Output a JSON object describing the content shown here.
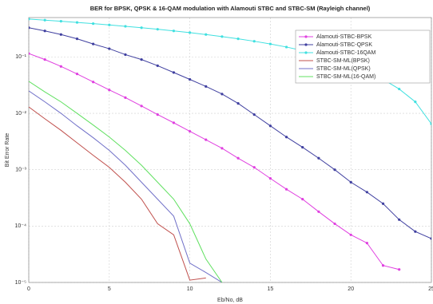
{
  "chart_data": {
    "type": "line",
    "title": "BER for BPSK, QPSK & 16-QAM modulation with Alamouti STBC and STBC-SM (Rayleigh channel)",
    "x_label": "Eb/No, dB",
    "y_label": "Bit Error Rate",
    "x": [
      0,
      1,
      2,
      3,
      4,
      5,
      6,
      7,
      8,
      9,
      10,
      11,
      12,
      13,
      14,
      15,
      16,
      17,
      18,
      19,
      20,
      21,
      22,
      23,
      24,
      25
    ],
    "xlim": [
      0,
      25
    ],
    "xticks": [
      0,
      5,
      10,
      15,
      20,
      25
    ],
    "ylim": [
      1e-05,
      0.5
    ],
    "yticks": [
      {
        "value": 1e-05,
        "label": "10⁻⁵"
      },
      {
        "value": 0.0001,
        "label": "10⁻⁴"
      },
      {
        "value": 0.001,
        "label": "10⁻³"
      },
      {
        "value": 0.01,
        "label": "10⁻²"
      },
      {
        "value": 0.1,
        "label": "10⁻¹"
      }
    ],
    "log_y": true,
    "grid": true,
    "legend": "upper right",
    "series": [
      {
        "name": "Alamouti-STBC-BPSK",
        "color": "#e040e0",
        "marker": true,
        "values": [
          0.115,
          0.09,
          0.068,
          0.05,
          0.036,
          0.026,
          0.019,
          0.0135,
          0.0095,
          0.0068,
          0.0048,
          0.0034,
          0.0024,
          0.0016,
          0.0011,
          0.0007,
          0.00045,
          0.0003,
          0.00018,
          0.00011,
          7e-05,
          5e-05,
          2e-05,
          1.7e-05,
          null,
          null
        ]
      },
      {
        "name": "Alamouti-STBC-QPSK",
        "color": "#4040a0",
        "marker": true,
        "values": [
          0.33,
          0.29,
          0.25,
          0.21,
          0.17,
          0.14,
          0.11,
          0.09,
          0.07,
          0.053,
          0.04,
          0.03,
          0.022,
          0.015,
          0.0095,
          0.006,
          0.0038,
          0.0025,
          0.0016,
          0.001,
          0.0006,
          0.0004,
          0.00025,
          0.00013,
          8e-05,
          6e-05
        ]
      },
      {
        "name": "Alamouti-STBC-16QAM",
        "color": "#40e0e0",
        "marker": true,
        "values": [
          0.47,
          0.45,
          0.43,
          0.41,
          0.39,
          0.37,
          0.35,
          0.33,
          0.31,
          0.29,
          0.27,
          0.25,
          0.23,
          0.21,
          0.19,
          0.17,
          0.15,
          0.13,
          0.11,
          0.09,
          0.07,
          0.055,
          0.04,
          0.027,
          0.016,
          0.0065
        ]
      },
      {
        "name": "STBC-SM-ML(BPSK)",
        "color": "#c0504d",
        "marker": false,
        "values": [
          0.013,
          0.008,
          0.005,
          0.003,
          0.0018,
          0.0011,
          0.0006,
          0.0003,
          0.00011,
          7e-05,
          1.1e-05,
          1.2e-05,
          null,
          null,
          null,
          null,
          null,
          null,
          null,
          null,
          null,
          null,
          null,
          null,
          null,
          null
        ]
      },
      {
        "name": "STBC-SM-ML(QPSK)",
        "color": "#7070c8",
        "marker": false,
        "values": [
          0.025,
          0.016,
          0.01,
          0.006,
          0.0037,
          0.0022,
          0.0012,
          0.0006,
          0.0003,
          0.00015,
          2.2e-05,
          1.5e-05,
          1e-05,
          null,
          null,
          null,
          null,
          null,
          null,
          null,
          null,
          null,
          null,
          null,
          null,
          null
        ]
      },
      {
        "name": "STBC-SM-ML(16-QAM)",
        "color": "#60e060",
        "marker": false,
        "values": [
          0.037,
          0.024,
          0.016,
          0.01,
          0.0062,
          0.0038,
          0.0022,
          0.0012,
          0.0006,
          0.0003,
          0.00011,
          2.6e-05,
          1e-05,
          null,
          null,
          null,
          null,
          null,
          null,
          null,
          null,
          null,
          null,
          null,
          null,
          null
        ]
      }
    ]
  }
}
